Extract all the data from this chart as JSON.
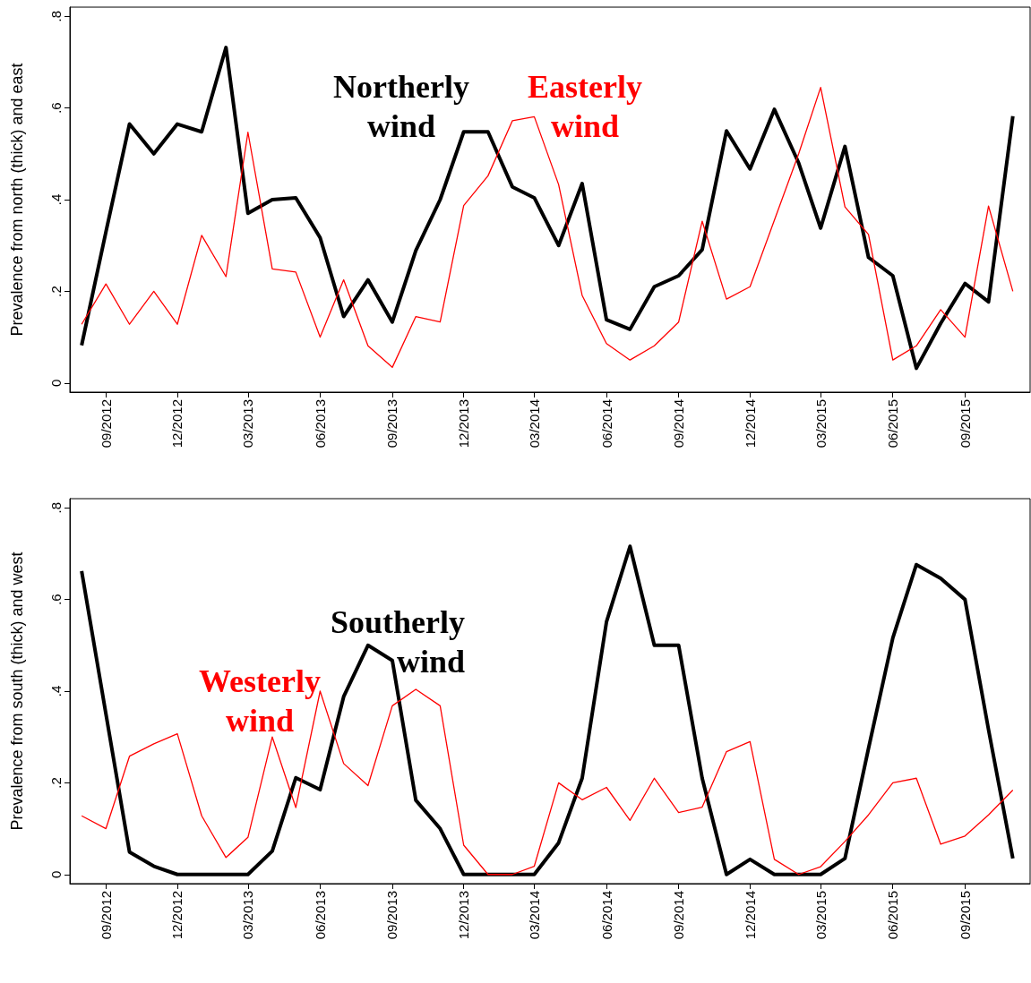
{
  "chart_data": [
    {
      "type": "line",
      "ylabel": "Prevalence from north (thick) and east",
      "marker": "none",
      "x": [
        "2012-08",
        "2012-09",
        "2012-10",
        "2012-11",
        "2012-12",
        "2013-01",
        "2013-02",
        "2013-03",
        "2013-04",
        "2013-05",
        "2013-06",
        "2013-07",
        "2013-08",
        "2013-09",
        "2013-10",
        "2013-11",
        "2013-12",
        "2014-01",
        "2014-02",
        "2014-03",
        "2014-04",
        "2014-05",
        "2014-06",
        "2014-07",
        "2014-08",
        "2014-09",
        "2014-10",
        "2014-11",
        "2014-12",
        "2015-01",
        "2015-02",
        "2015-03",
        "2015-04",
        "2015-05",
        "2015-06",
        "2015-07",
        "2015-08",
        "2015-09",
        "2015-10",
        "2015-11"
      ],
      "xlim": [
        "2012-07-17",
        "2015-11-23"
      ],
      "xticks": [
        {
          "value": "2012-09",
          "label": "09/2012"
        },
        {
          "value": "2012-12",
          "label": "12/2012"
        },
        {
          "value": "2013-03",
          "label": "03/2013"
        },
        {
          "value": "2013-06",
          "label": "06/2013"
        },
        {
          "value": "2013-09",
          "label": "09/2013"
        },
        {
          "value": "2013-12",
          "label": "12/2013"
        },
        {
          "value": "2014-03",
          "label": "03/2014"
        },
        {
          "value": "2014-06",
          "label": "06/2014"
        },
        {
          "value": "2014-09",
          "label": "09/2014"
        },
        {
          "value": "2014-12",
          "label": "12/2014"
        },
        {
          "value": "2015-03",
          "label": "03/2015"
        },
        {
          "value": "2015-06",
          "label": "06/2015"
        },
        {
          "value": "2015-09",
          "label": "09/2015"
        }
      ],
      "ylim": [
        -0.02,
        0.82
      ],
      "yticks": [
        0,
        {
          "value": 0.2,
          "label": ".2"
        },
        {
          "value": 0.4,
          "label": ".4"
        },
        {
          "value": 0.6,
          "label": ".6"
        },
        {
          "value": 0.8,
          "label": ".8"
        }
      ],
      "series": [
        {
          "name": "Northerly wind",
          "color": "#000000",
          "values": [
            0.082,
            0.33,
            0.565,
            0.5,
            0.565,
            0.548,
            0.732,
            0.37,
            0.4,
            0.404,
            0.317,
            0.145,
            0.225,
            0.133,
            0.289,
            0.4,
            0.548,
            0.548,
            0.428,
            0.404,
            0.3,
            0.435,
            0.138,
            0.117,
            0.21,
            0.234,
            0.291,
            0.55,
            0.467,
            0.597,
            0.48,
            0.338,
            0.516,
            0.274,
            0.234,
            0.032,
            0.13,
            0.217,
            0.177,
            0.582
          ]
        },
        {
          "name": "Easterly wind",
          "color": "#ff0000",
          "values": [
            0.128,
            0.216,
            0.128,
            0.2,
            0.128,
            0.322,
            0.232,
            0.547,
            0.249,
            0.242,
            0.1,
            0.225,
            0.081,
            0.034,
            0.145,
            0.133,
            0.387,
            0.452,
            0.572,
            0.581,
            0.433,
            0.191,
            0.086,
            0.05,
            0.081,
            0.133,
            0.353,
            0.183,
            0.21,
            0.355,
            0.5,
            0.645,
            0.384,
            0.324,
            0.05,
            0.081,
            0.16,
            0.1,
            0.386,
            0.2
          ]
        }
      ]
    },
    {
      "type": "line",
      "ylabel": "Prevalence from south (thick) and west",
      "marker": "none",
      "x": [
        "2012-08",
        "2012-09",
        "2012-10",
        "2012-11",
        "2012-12",
        "2013-01",
        "2013-02",
        "2013-03",
        "2013-04",
        "2013-05",
        "2013-06",
        "2013-07",
        "2013-08",
        "2013-09",
        "2013-10",
        "2013-11",
        "2013-12",
        "2014-01",
        "2014-02",
        "2014-03",
        "2014-04",
        "2014-05",
        "2014-06",
        "2014-07",
        "2014-08",
        "2014-09",
        "2014-10",
        "2014-11",
        "2014-12",
        "2015-01",
        "2015-02",
        "2015-03",
        "2015-04",
        "2015-05",
        "2015-06",
        "2015-07",
        "2015-08",
        "2015-09",
        "2015-10",
        "2015-11"
      ],
      "xlim": [
        "2012-07-17",
        "2015-11-23"
      ],
      "xticks": [
        {
          "value": "2012-09",
          "label": "09/2012"
        },
        {
          "value": "2012-12",
          "label": "12/2012"
        },
        {
          "value": "2013-03",
          "label": "03/2013"
        },
        {
          "value": "2013-06",
          "label": "06/2013"
        },
        {
          "value": "2013-09",
          "label": "09/2013"
        },
        {
          "value": "2013-12",
          "label": "12/2013"
        },
        {
          "value": "2014-03",
          "label": "03/2014"
        },
        {
          "value": "2014-06",
          "label": "06/2014"
        },
        {
          "value": "2014-09",
          "label": "09/2014"
        },
        {
          "value": "2014-12",
          "label": "12/2014"
        },
        {
          "value": "2015-03",
          "label": "03/2015"
        },
        {
          "value": "2015-06",
          "label": "06/2015"
        },
        {
          "value": "2015-09",
          "label": "09/2015"
        }
      ],
      "ylim": [
        -0.02,
        0.82
      ],
      "yticks": [
        0,
        {
          "value": 0.2,
          "label": ".2"
        },
        {
          "value": 0.4,
          "label": ".4"
        },
        {
          "value": 0.6,
          "label": ".6"
        },
        {
          "value": 0.8,
          "label": ".8"
        }
      ],
      "series": [
        {
          "name": "Southerly wind",
          "color": "#000000",
          "values": [
            0.662,
            0.35,
            0.049,
            0.018,
            0,
            0,
            0,
            0,
            0.051,
            0.211,
            0.185,
            0.388,
            0.5,
            0.467,
            0.162,
            0.1,
            0,
            0,
            0,
            0,
            0.069,
            0.21,
            0.551,
            0.716,
            0.5,
            0.5,
            0.21,
            0,
            0.033,
            0,
            0,
            0,
            0.035,
            0.275,
            0.516,
            0.676,
            0.646,
            0.6,
            0.316,
            0.035
          ]
        },
        {
          "name": "Westerly wind",
          "color": "#ff0000",
          "values": [
            0.128,
            0.1,
            0.258,
            0.285,
            0.307,
            0.128,
            0.037,
            0.081,
            0.3,
            0.146,
            0.4,
            0.242,
            0.194,
            0.368,
            0.404,
            0.368,
            0.064,
            0,
            0,
            0.018,
            0.2,
            0.163,
            0.19,
            0.118,
            0.21,
            0.135,
            0.147,
            0.268,
            0.29,
            0.033,
            0,
            0.017,
            0.072,
            0.13,
            0.2,
            0.21,
            0.066,
            0.084,
            0.13,
            0.184
          ]
        }
      ]
    }
  ]
}
